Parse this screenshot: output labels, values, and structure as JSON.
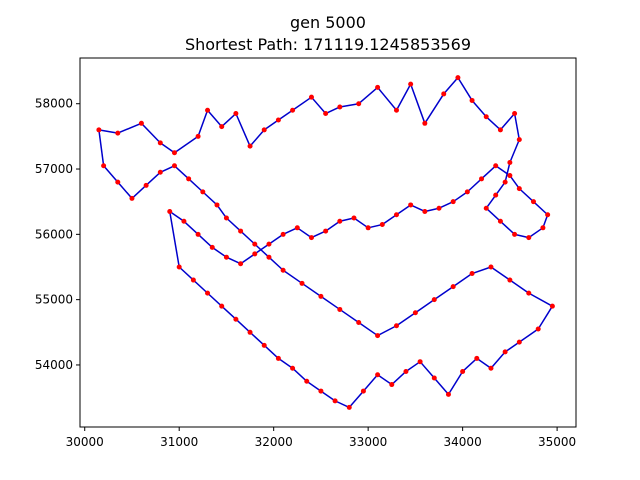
{
  "chart_data": {
    "type": "line",
    "title": "gen 5000",
    "subtitle": "Shortest Path: 171119.1245853569",
    "xlabel": "",
    "ylabel": "",
    "xlim": [
      29950,
      35200
    ],
    "ylim": [
      53050,
      58700
    ],
    "xticks": [
      30000,
      31000,
      32000,
      33000,
      34000,
      35000
    ],
    "yticks": [
      54000,
      55000,
      56000,
      57000,
      58000
    ],
    "grid": false,
    "series": [
      {
        "marker": "circle",
        "line_color": "#0000cc",
        "marker_color": "#ff0000",
        "closed": true,
        "x": [
          30150,
          30350,
          30600,
          30800,
          30950,
          31200,
          31300,
          31450,
          31600,
          31750,
          31900,
          32050,
          32200,
          32400,
          32550,
          32700,
          32900,
          33100,
          33300,
          33450,
          33600,
          33800,
          33950,
          34100,
          34250,
          34400,
          34550,
          34600,
          34500,
          34450,
          34350,
          34250,
          34400,
          34550,
          34700,
          34850,
          34900,
          34750,
          34600,
          34500,
          34350,
          34200,
          34050,
          33900,
          33750,
          33600,
          33450,
          33300,
          33150,
          33000,
          32850,
          32700,
          32550,
          32400,
          32250,
          32100,
          31950,
          31800,
          31650,
          31500,
          31350,
          31200,
          31050,
          30900,
          31000,
          31150,
          31300,
          31450,
          31600,
          31750,
          31900,
          32050,
          32200,
          32350,
          32500,
          32650,
          32800,
          32950,
          33100,
          33250,
          33400,
          33550,
          33700,
          33850,
          34000,
          34150,
          34300,
          34450,
          34600,
          34800,
          34950,
          34700,
          34500,
          34300,
          34100,
          33900,
          33700,
          33500,
          33300,
          33100,
          32900,
          32700,
          32500,
          32300,
          32100,
          31950,
          31800,
          31650,
          31500,
          31400,
          31250,
          31100,
          30950,
          30800,
          30650,
          30500,
          30350,
          30200
        ],
        "y": [
          57600,
          57550,
          57700,
          57400,
          57250,
          57500,
          57900,
          57650,
          57850,
          57350,
          57600,
          57750,
          57900,
          58100,
          57850,
          57950,
          58000,
          58250,
          57900,
          58300,
          57700,
          58150,
          58400,
          58050,
          57800,
          57600,
          57850,
          57450,
          57100,
          56800,
          56600,
          56400,
          56200,
          56000,
          55950,
          56100,
          56300,
          56500,
          56700,
          56900,
          57050,
          56850,
          56650,
          56500,
          56400,
          56350,
          56450,
          56300,
          56150,
          56100,
          56250,
          56200,
          56050,
          55950,
          56100,
          56000,
          55850,
          55700,
          55550,
          55650,
          55800,
          56000,
          56200,
          56350,
          55500,
          55300,
          55100,
          54900,
          54700,
          54500,
          54300,
          54100,
          53950,
          53750,
          53600,
          53450,
          53350,
          53600,
          53850,
          53700,
          53900,
          54050,
          53800,
          53550,
          53900,
          54100,
          53950,
          54200,
          54350,
          54550,
          54900,
          55100,
          55300,
          55500,
          55400,
          55200,
          55000,
          54800,
          54600,
          54450,
          54650,
          54850,
          55050,
          55250,
          55450,
          55650,
          55850,
          56050,
          56250,
          56450,
          56650,
          56850,
          57050,
          56950,
          56750,
          56550,
          56800,
          57050
        ]
      }
    ]
  }
}
